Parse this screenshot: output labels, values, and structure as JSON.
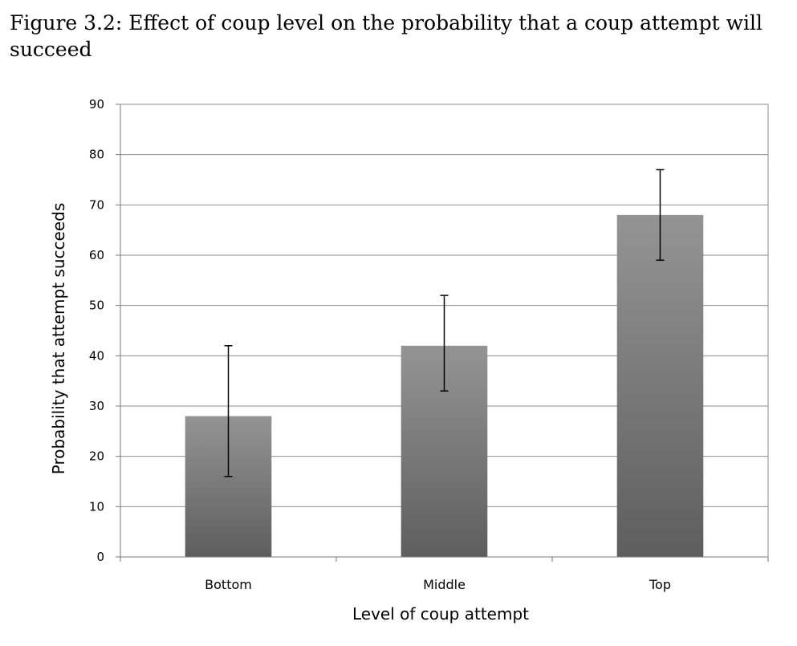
{
  "figure": {
    "caption": "Figure 3.2: Effect of coup level on the probability that a coup attempt will succeed"
  },
  "chart_data": {
    "type": "bar",
    "categories": [
      "Bottom",
      "Middle",
      "Top"
    ],
    "values": [
      28,
      42,
      68
    ],
    "error_bars": [
      {
        "low": 16,
        "high": 42
      },
      {
        "low": 33,
        "high": 52
      },
      {
        "low": 59,
        "high": 77
      }
    ],
    "xlabel": "Level of coup attempt",
    "ylabel": "Probability that attempt succeeds",
    "ylim": [
      0,
      90
    ],
    "yticks": [
      0,
      10,
      20,
      30,
      40,
      50,
      60,
      70,
      80,
      90
    ],
    "grid": true,
    "legend": "none",
    "colors": {
      "bar_top": "#949494",
      "bar_bottom": "#5e5e5e",
      "grid": "#8c8c8c",
      "error_bar": "#000000"
    }
  }
}
